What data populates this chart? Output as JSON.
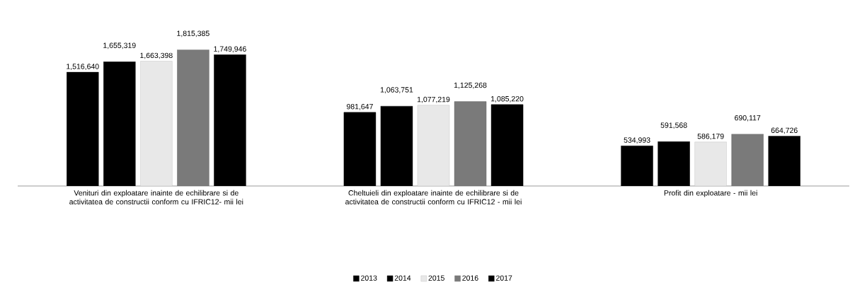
{
  "chart_data": {
    "type": "bar",
    "categories": [
      "Venituri din exploatare inainte de echilibrare si de activitatea de constructii conform cu IFRIC12- mii lei",
      "Cheltuieli din exploatare inainte de echilibrare si de activitatea de constructii conform cu IFRIC12 - mii lei",
      "Profit din exploatare  - mii lei"
    ],
    "series": [
      {
        "name": "2013",
        "color": "#000000",
        "values": [
          1516640,
          981647,
          534993
        ],
        "value_labels": [
          "1,516,640",
          "981,647",
          "534,993"
        ]
      },
      {
        "name": "2014",
        "color": "#000000",
        "values": [
          1655319,
          1063751,
          591568
        ],
        "value_labels": [
          "1,655,319",
          "1,063,751",
          "591,568"
        ]
      },
      {
        "name": "2015",
        "color": "#e8e8e8",
        "values": [
          1663398,
          1077219,
          586179
        ],
        "value_labels": [
          "1,663,398",
          "1,077,219",
          "586,179"
        ]
      },
      {
        "name": "2016",
        "color": "#7a7a7a",
        "values": [
          1815385,
          1125268,
          690117
        ],
        "value_labels": [
          "1,815,385",
          "1,125,268",
          "690,117"
        ]
      },
      {
        "name": "2017",
        "color": "#000000",
        "values": [
          1749946,
          1085220,
          664726
        ],
        "value_labels": [
          "1,749,946",
          "1,085,220",
          "664,726"
        ]
      }
    ],
    "legend": "bottom"
  }
}
